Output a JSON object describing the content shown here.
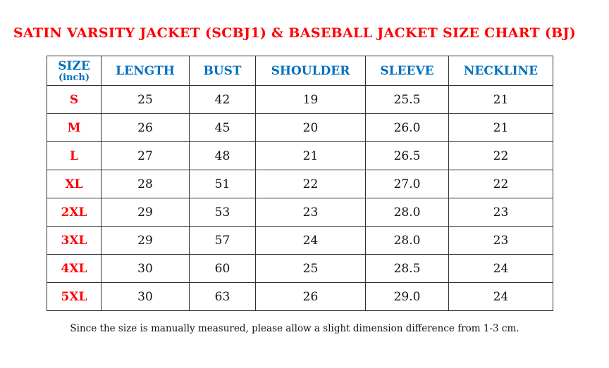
{
  "title": "SATIN VARSITY JACKET (SCBJ1) & BASEBALL JACKET SIZE CHART (BJ)",
  "headers": {
    "size": "SIZE",
    "unit": "(inch)",
    "cols": [
      "LENGTH",
      "BUST",
      "SHOULDER",
      "SLEEVE",
      "NECKLINE"
    ]
  },
  "rows": [
    {
      "size": "S",
      "values": [
        "25",
        "42",
        "19",
        "25.5",
        "21"
      ]
    },
    {
      "size": "M",
      "values": [
        "26",
        "45",
        "20",
        "26.0",
        "21"
      ]
    },
    {
      "size": "L",
      "values": [
        "27",
        "48",
        "21",
        "26.5",
        "22"
      ]
    },
    {
      "size": "XL",
      "values": [
        "28",
        "51",
        "22",
        "27.0",
        "22"
      ]
    },
    {
      "size": "2XL",
      "values": [
        "29",
        "53",
        "23",
        "28.0",
        "23"
      ]
    },
    {
      "size": "3XL",
      "values": [
        "29",
        "57",
        "24",
        "28.0",
        "23"
      ]
    },
    {
      "size": "4XL",
      "values": [
        "30",
        "60",
        "25",
        "28.5",
        "24"
      ]
    },
    {
      "size": "5XL",
      "values": [
        "30",
        "63",
        "26",
        "29.0",
        "24"
      ]
    }
  ],
  "note": "Since the size is manually measured, please allow a slight dimension difference from 1-3 cm.",
  "colors": {
    "title": "#ff0000",
    "header": "#0070c0",
    "size": "#ff0000"
  }
}
